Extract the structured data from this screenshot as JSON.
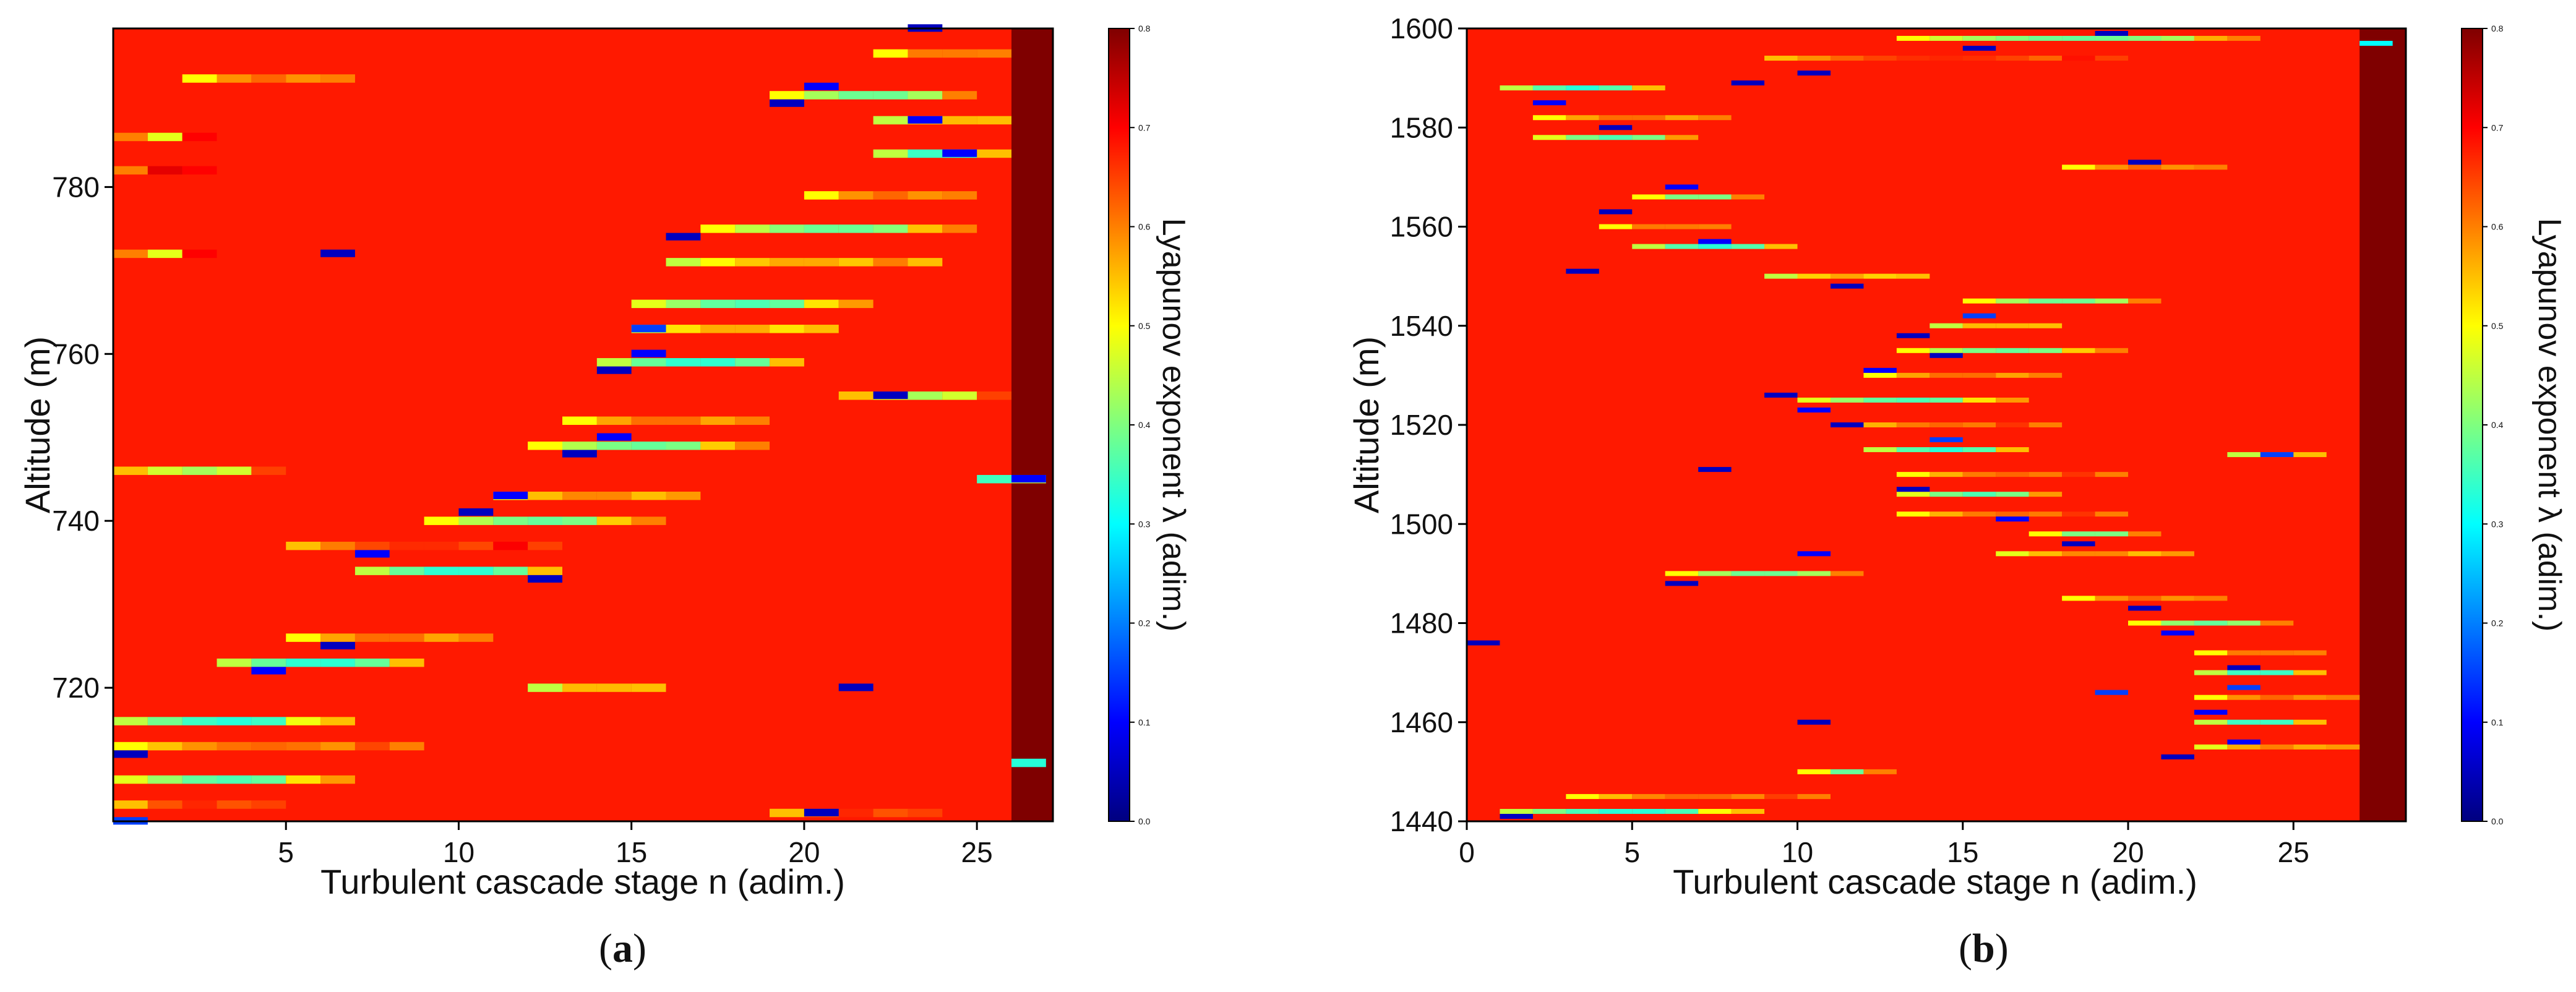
{
  "figure": {
    "panel_a_label_open": "(",
    "panel_a_label_letter": "a",
    "panel_a_label_close": ")",
    "panel_b_label_open": "(",
    "panel_b_label_letter": "b",
    "panel_b_label_close": ")"
  },
  "colors": {
    "background": "#ff4a00",
    "top_stage": "#800000",
    "colormap": [
      "#00007f",
      "#0000ff",
      "#007fff",
      "#00ffff",
      "#7fff7f",
      "#ffff00",
      "#ff7f00",
      "#ff0000",
      "#7f0000"
    ]
  },
  "chart_data": [
    {
      "id": "a",
      "type": "heatmap",
      "title": "",
      "xlabel": "Turbulent cascade stage n (adim.)",
      "ylabel": "Altitude (m)",
      "colorbar_label": "Lyapunov exponent λ (adim.)",
      "xlim": [
        0,
        27.2
      ],
      "ylim": [
        704,
        799
      ],
      "xticks": [
        5,
        10,
        15,
        20,
        25
      ],
      "yticks": [
        720,
        740,
        760,
        780
      ],
      "clim": [
        0.0,
        0.8
      ],
      "cbar_ticks": [
        "0.0",
        "0.1",
        "0.2",
        "0.3",
        "0.4",
        "0.5",
        "0.6",
        "0.7",
        "0.8"
      ],
      "background_value": 0.68,
      "top_stage_value": 0.8,
      "bands": [
        {
          "y": 716,
          "x0": 0,
          "x1": 7,
          "v": 0.45
        },
        {
          "y": 713,
          "x0": 0,
          "x1": 9,
          "v": 0.5
        },
        {
          "y": 709,
          "x0": 0,
          "x1": 7,
          "v": 0.48
        },
        {
          "y": 706,
          "x0": 0,
          "x1": 5,
          "v": 0.55
        },
        {
          "y": 723,
          "x0": 3,
          "x1": 9,
          "v": 0.45
        },
        {
          "y": 726,
          "x0": 5,
          "x1": 11,
          "v": 0.5
        },
        {
          "y": 734,
          "x0": 7,
          "x1": 13,
          "v": 0.45
        },
        {
          "y": 737,
          "x0": 5,
          "x1": 13,
          "v": 0.55
        },
        {
          "y": 740,
          "x0": 9,
          "x1": 16,
          "v": 0.5
        },
        {
          "y": 743,
          "x0": 11,
          "x1": 17,
          "v": 0.48
        },
        {
          "y": 749,
          "x0": 12,
          "x1": 19,
          "v": 0.5
        },
        {
          "y": 752,
          "x0": 13,
          "x1": 19,
          "v": 0.5
        },
        {
          "y": 759,
          "x0": 14,
          "x1": 20,
          "v": 0.45
        },
        {
          "y": 763,
          "x0": 15,
          "x1": 21,
          "v": 0.45
        },
        {
          "y": 766,
          "x0": 15,
          "x1": 22,
          "v": 0.48
        },
        {
          "y": 771,
          "x0": 16,
          "x1": 24,
          "v": 0.45
        },
        {
          "y": 775,
          "x0": 17,
          "x1": 25,
          "v": 0.5
        },
        {
          "y": 779,
          "x0": 20,
          "x1": 25,
          "v": 0.5
        },
        {
          "y": 784,
          "x0": 22,
          "x1": 26,
          "v": 0.45
        },
        {
          "y": 788,
          "x0": 22,
          "x1": 26,
          "v": 0.45
        },
        {
          "y": 791,
          "x0": 19,
          "x1": 25,
          "v": 0.5
        },
        {
          "y": 796,
          "x0": 22,
          "x1": 26,
          "v": 0.5
        },
        {
          "y": 746,
          "x0": 0,
          "x1": 5,
          "v": 0.55
        },
        {
          "y": 745,
          "x0": 25,
          "x1": 27,
          "v": 0.35
        },
        {
          "y": 755,
          "x0": 21,
          "x1": 26,
          "v": 0.55
        },
        {
          "y": 793,
          "x0": 2,
          "x1": 7,
          "v": 0.5
        },
        {
          "y": 786,
          "x0": 0,
          "x1": 3,
          "v": 0.6
        },
        {
          "y": 782,
          "x0": 0,
          "x1": 3,
          "v": 0.6
        },
        {
          "y": 772,
          "x0": 0,
          "x1": 3,
          "v": 0.6
        },
        {
          "y": 720,
          "x0": 12,
          "x1": 16,
          "v": 0.45
        },
        {
          "y": 711,
          "x0": 26,
          "x1": 27,
          "v": 0.45
        },
        {
          "y": 705,
          "x0": 19,
          "x1": 24,
          "v": 0.55
        }
      ],
      "spots": [
        {
          "y": 722,
          "x": 4,
          "v": 0.1
        },
        {
          "y": 725,
          "x": 6,
          "v": 0.05
        },
        {
          "y": 733,
          "x": 12,
          "v": 0.05
        },
        {
          "y": 736,
          "x": 7,
          "v": 0.1
        },
        {
          "y": 741,
          "x": 10,
          "v": 0.05
        },
        {
          "y": 743,
          "x": 11,
          "v": 0.1
        },
        {
          "y": 748,
          "x": 13,
          "v": 0.05
        },
        {
          "y": 750,
          "x": 14,
          "v": 0.1
        },
        {
          "y": 758,
          "x": 14,
          "v": 0.05
        },
        {
          "y": 760,
          "x": 15,
          "v": 0.1
        },
        {
          "y": 763,
          "x": 15,
          "v": 0.15
        },
        {
          "y": 772,
          "x": 6,
          "v": 0.05
        },
        {
          "y": 774,
          "x": 16,
          "v": 0.05
        },
        {
          "y": 784,
          "x": 24,
          "v": 0.1
        },
        {
          "y": 790,
          "x": 19,
          "v": 0.05
        },
        {
          "y": 792,
          "x": 20,
          "v": 0.1
        },
        {
          "y": 799,
          "x": 23,
          "v": 0.05
        },
        {
          "y": 720,
          "x": 21,
          "v": 0.05
        },
        {
          "y": 712,
          "x": 0,
          "v": 0.05
        },
        {
          "y": 704,
          "x": 0,
          "v": 0.15
        },
        {
          "y": 755,
          "x": 22,
          "v": 0.05
        },
        {
          "y": 745,
          "x": 26,
          "v": 0.1
        },
        {
          "y": 705,
          "x": 20,
          "v": 0.05
        },
        {
          "y": 788,
          "x": 23,
          "v": 0.1
        }
      ]
    },
    {
      "id": "b",
      "type": "heatmap",
      "title": "",
      "xlabel": "Turbulent cascade stage n (adim.)",
      "ylabel": "Altitude (m)",
      "colorbar_label": "Lyapunov exponent λ (adim.)",
      "xlim": [
        0,
        28.4
      ],
      "ylim": [
        1440,
        1600
      ],
      "xticks": [
        0,
        5,
        10,
        15,
        20,
        25
      ],
      "yticks": [
        1440,
        1460,
        1480,
        1500,
        1520,
        1540,
        1560,
        1580,
        1600
      ],
      "clim": [
        0.0,
        0.8
      ],
      "cbar_ticks": [
        "0.0",
        "0.1",
        "0.2",
        "0.3",
        "0.4",
        "0.5",
        "0.6",
        "0.7",
        "0.8"
      ],
      "background_value": 0.68,
      "top_stage_value": 0.8,
      "bands": [
        {
          "y": 1442,
          "x0": 1,
          "x1": 9,
          "v": 0.45
        },
        {
          "y": 1445,
          "x0": 3,
          "x1": 11,
          "v": 0.5
        },
        {
          "y": 1450,
          "x0": 10,
          "x1": 13,
          "v": 0.5
        },
        {
          "y": 1455,
          "x0": 22,
          "x1": 27,
          "v": 0.48
        },
        {
          "y": 1460,
          "x0": 22,
          "x1": 26,
          "v": 0.45
        },
        {
          "y": 1465,
          "x0": 22,
          "x1": 27,
          "v": 0.5
        },
        {
          "y": 1470,
          "x0": 22,
          "x1": 26,
          "v": 0.45
        },
        {
          "y": 1474,
          "x0": 22,
          "x1": 26,
          "v": 0.5
        },
        {
          "y": 1480,
          "x0": 20,
          "x1": 25,
          "v": 0.5
        },
        {
          "y": 1485,
          "x0": 18,
          "x1": 23,
          "v": 0.5
        },
        {
          "y": 1490,
          "x0": 6,
          "x1": 12,
          "v": 0.5
        },
        {
          "y": 1494,
          "x0": 16,
          "x1": 22,
          "v": 0.48
        },
        {
          "y": 1498,
          "x0": 17,
          "x1": 21,
          "v": 0.5
        },
        {
          "y": 1502,
          "x0": 13,
          "x1": 20,
          "v": 0.5
        },
        {
          "y": 1506,
          "x0": 13,
          "x1": 18,
          "v": 0.48
        },
        {
          "y": 1510,
          "x0": 13,
          "x1": 20,
          "v": 0.5
        },
        {
          "y": 1515,
          "x0": 12,
          "x1": 17,
          "v": 0.45
        },
        {
          "y": 1520,
          "x0": 11,
          "x1": 18,
          "v": 0.5
        },
        {
          "y": 1525,
          "x0": 10,
          "x1": 17,
          "v": 0.48
        },
        {
          "y": 1530,
          "x0": 12,
          "x1": 18,
          "v": 0.5
        },
        {
          "y": 1535,
          "x0": 13,
          "x1": 20,
          "v": 0.5
        },
        {
          "y": 1540,
          "x0": 14,
          "x1": 18,
          "v": 0.45
        },
        {
          "y": 1545,
          "x0": 15,
          "x1": 21,
          "v": 0.5
        },
        {
          "y": 1550,
          "x0": 9,
          "x1": 14,
          "v": 0.45
        },
        {
          "y": 1556,
          "x0": 5,
          "x1": 10,
          "v": 0.45
        },
        {
          "y": 1560,
          "x0": 4,
          "x1": 8,
          "v": 0.5
        },
        {
          "y": 1566,
          "x0": 5,
          "x1": 9,
          "v": 0.5
        },
        {
          "y": 1572,
          "x0": 18,
          "x1": 23,
          "v": 0.5
        },
        {
          "y": 1578,
          "x0": 2,
          "x1": 7,
          "v": 0.48
        },
        {
          "y": 1582,
          "x0": 2,
          "x1": 8,
          "v": 0.5
        },
        {
          "y": 1588,
          "x0": 1,
          "x1": 6,
          "v": 0.45
        },
        {
          "y": 1594,
          "x0": 9,
          "x1": 20,
          "v": 0.55
        },
        {
          "y": 1598,
          "x0": 13,
          "x1": 24,
          "v": 0.5
        },
        {
          "y": 1514,
          "x0": 23,
          "x1": 26,
          "v": 0.45
        }
      ],
      "spots": [
        {
          "y": 1441,
          "x": 1,
          "v": 0.05
        },
        {
          "y": 1476,
          "x": 0,
          "v": 0.05
        },
        {
          "y": 1453,
          "x": 21,
          "v": 0.05
        },
        {
          "y": 1456,
          "x": 23,
          "v": 0.1
        },
        {
          "y": 1462,
          "x": 22,
          "v": 0.1
        },
        {
          "y": 1467,
          "x": 23,
          "v": 0.15
        },
        {
          "y": 1471,
          "x": 23,
          "v": 0.05
        },
        {
          "y": 1478,
          "x": 21,
          "v": 0.1
        },
        {
          "y": 1483,
          "x": 20,
          "v": 0.05
        },
        {
          "y": 1488,
          "x": 6,
          "v": 0.05
        },
        {
          "y": 1494,
          "x": 10,
          "v": 0.1
        },
        {
          "y": 1496,
          "x": 18,
          "v": 0.05
        },
        {
          "y": 1501,
          "x": 16,
          "v": 0.1
        },
        {
          "y": 1507,
          "x": 13,
          "v": 0.05
        },
        {
          "y": 1511,
          "x": 7,
          "v": 0.05
        },
        {
          "y": 1517,
          "x": 14,
          "v": 0.15
        },
        {
          "y": 1520,
          "x": 11,
          "v": 0.05
        },
        {
          "y": 1523,
          "x": 10,
          "v": 0.1
        },
        {
          "y": 1526,
          "x": 9,
          "v": 0.05
        },
        {
          "y": 1531,
          "x": 12,
          "v": 0.1
        },
        {
          "y": 1534,
          "x": 14,
          "v": 0.05
        },
        {
          "y": 1538,
          "x": 13,
          "v": 0.05
        },
        {
          "y": 1542,
          "x": 15,
          "v": 0.15
        },
        {
          "y": 1548,
          "x": 11,
          "v": 0.05
        },
        {
          "y": 1551,
          "x": 3,
          "v": 0.05
        },
        {
          "y": 1557,
          "x": 7,
          "v": 0.1
        },
        {
          "y": 1563,
          "x": 4,
          "v": 0.05
        },
        {
          "y": 1568,
          "x": 6,
          "v": 0.1
        },
        {
          "y": 1573,
          "x": 20,
          "v": 0.05
        },
        {
          "y": 1580,
          "x": 4,
          "v": 0.05
        },
        {
          "y": 1585,
          "x": 2,
          "v": 0.1
        },
        {
          "y": 1589,
          "x": 8,
          "v": 0.05
        },
        {
          "y": 1591,
          "x": 10,
          "v": 0.05
        },
        {
          "y": 1596,
          "x": 15,
          "v": 0.05
        },
        {
          "y": 1599,
          "x": 19,
          "v": 0.05
        },
        {
          "y": 1597,
          "x": 27,
          "v": 0.3
        },
        {
          "y": 1460,
          "x": 10,
          "v": 0.05
        },
        {
          "y": 1466,
          "x": 19,
          "v": 0.15
        },
        {
          "y": 1514,
          "x": 24,
          "v": 0.15
        }
      ]
    }
  ]
}
